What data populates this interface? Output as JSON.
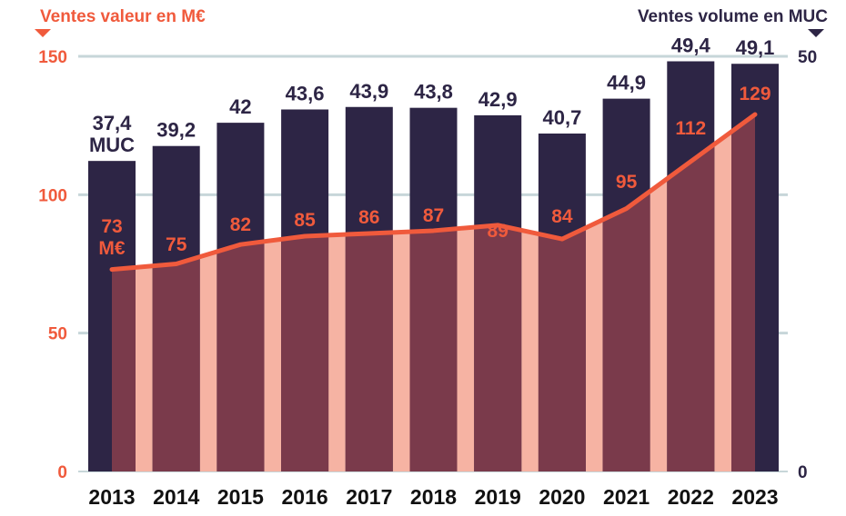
{
  "chart_data": {
    "type": "bar",
    "left_axis_title": "Ventes valeur en M€",
    "right_axis_title": "Ventes volume en MUC",
    "left_ticks": [
      "0",
      "50",
      "100",
      "150"
    ],
    "right_ticks": [
      "0",
      "50"
    ],
    "left_ylim": [
      0,
      150
    ],
    "right_ylim": [
      0,
      50
    ],
    "grid": true,
    "categories": [
      "2013",
      "2014",
      "2015",
      "2016",
      "2017",
      "2018",
      "2019",
      "2020",
      "2021",
      "2022",
      "2023"
    ],
    "series": [
      {
        "axis": "right",
        "kind": "bar",
        "values": [
          37.4,
          39.2,
          42,
          43.6,
          43.9,
          43.8,
          42.9,
          40.7,
          44.9,
          49.4,
          49.1
        ],
        "labels": [
          "37,4",
          "39,2",
          "42",
          "43,6",
          "43,9",
          "43,8",
          "42,9",
          "40,7",
          "44,9",
          "49,4",
          "49,1"
        ],
        "unit_label": "MUC",
        "color": "#2d2545"
      },
      {
        "axis": "left",
        "kind": "line",
        "values": [
          73,
          75,
          82,
          85,
          86,
          87,
          89,
          84,
          95,
          112,
          129
        ],
        "labels": [
          "73",
          "75",
          "82",
          "85",
          "86",
          "87",
          "89",
          "84",
          "95",
          "112",
          "129"
        ],
        "unit_label": "M€",
        "color": "#f05a3c",
        "fill_color": "#f6b3a3",
        "overlap_color": "#7a3a4b"
      }
    ],
    "colors": {
      "accent": "#f05a3c",
      "bar": "#2d2545",
      "grid": "#c7d6d9",
      "axis_text_left": "#f05a3c",
      "axis_text_right": "#2d2545"
    }
  }
}
